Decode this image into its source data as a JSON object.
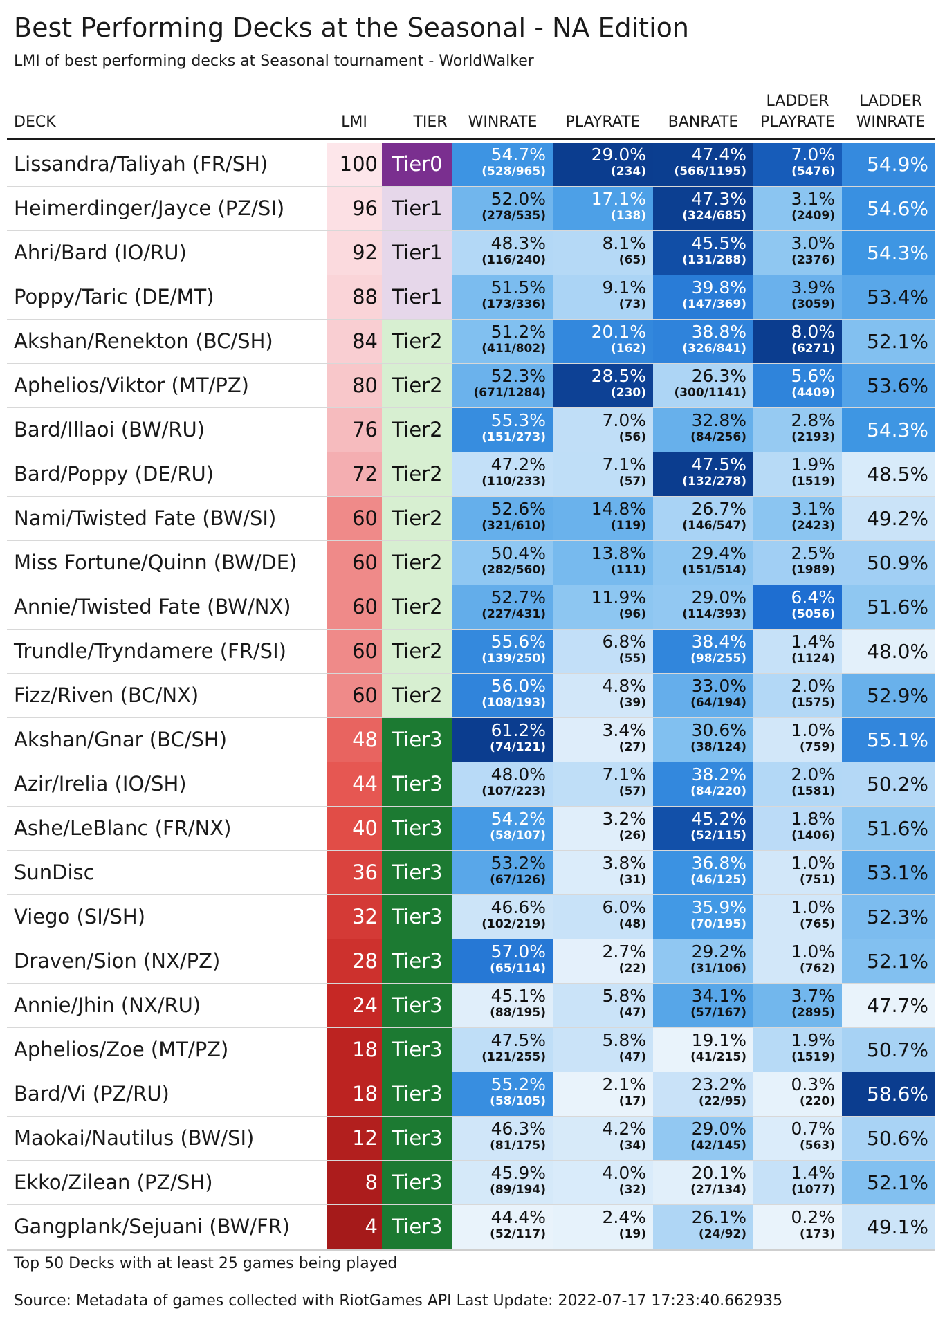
{
  "title": "Best Performing Decks at the Seasonal - NA Edition",
  "subtitle": "LMI of best performing decks at Seasonal tournament - WorldWalker",
  "headers": {
    "deck": "DECK",
    "lmi": "LMI",
    "tier": "TIER",
    "winrate": "WINRATE",
    "playrate": "PLAYRATE",
    "banrate": "BANRATE",
    "ladder_playrate_1": "LADDER",
    "ladder_playrate_2": "PLAYRATE",
    "ladder_winrate_1": "LADDER",
    "ladder_winrate_2": "WINRATE"
  },
  "footer": {
    "note": "Top 50 Decks with at least 25 games being played",
    "source": "Source: Metadata of games collected with RiotGames API Last Update: 2022-07-17 17:23:40.662935"
  },
  "tier_colors": {
    "Tier0": "#7a2f8f",
    "Tier1": "#e6d7ea",
    "Tier2": "#d7efd1",
    "Tier3": "#1c7a32"
  },
  "chart_data": {
    "type": "table",
    "columns": [
      "DECK",
      "LMI",
      "TIER",
      "WINRATE",
      "PLAYRATE",
      "BANRATE",
      "LADDER PLAYRATE",
      "LADDER WINRATE"
    ],
    "rows": [
      {
        "deck": "Lissandra/Taliyah (FR/SH)",
        "lmi": 100,
        "tier": "Tier0",
        "winrate": "54.7%",
        "winrate_count": "(528/965)",
        "playrate": "29.0%",
        "playrate_count": "(234)",
        "banrate": "47.4%",
        "banrate_count": "(566/1195)",
        "ladder_playrate": "7.0%",
        "ladder_playrate_count": "(5476)",
        "ladder_winrate": "54.9%"
      },
      {
        "deck": "Heimerdinger/Jayce (PZ/SI)",
        "lmi": 96,
        "tier": "Tier1",
        "winrate": "52.0%",
        "winrate_count": "(278/535)",
        "playrate": "17.1%",
        "playrate_count": "(138)",
        "banrate": "47.3%",
        "banrate_count": "(324/685)",
        "ladder_playrate": "3.1%",
        "ladder_playrate_count": "(2409)",
        "ladder_winrate": "54.6%"
      },
      {
        "deck": "Ahri/Bard (IO/RU)",
        "lmi": 92,
        "tier": "Tier1",
        "winrate": "48.3%",
        "winrate_count": "(116/240)",
        "playrate": "8.1%",
        "playrate_count": "(65)",
        "banrate": "45.5%",
        "banrate_count": "(131/288)",
        "ladder_playrate": "3.0%",
        "ladder_playrate_count": "(2376)",
        "ladder_winrate": "54.3%"
      },
      {
        "deck": "Poppy/Taric (DE/MT)",
        "lmi": 88,
        "tier": "Tier1",
        "winrate": "51.5%",
        "winrate_count": "(173/336)",
        "playrate": "9.1%",
        "playrate_count": "(73)",
        "banrate": "39.8%",
        "banrate_count": "(147/369)",
        "ladder_playrate": "3.9%",
        "ladder_playrate_count": "(3059)",
        "ladder_winrate": "53.4%"
      },
      {
        "deck": "Akshan/Renekton (BC/SH)",
        "lmi": 84,
        "tier": "Tier2",
        "winrate": "51.2%",
        "winrate_count": "(411/802)",
        "playrate": "20.1%",
        "playrate_count": "(162)",
        "banrate": "38.8%",
        "banrate_count": "(326/841)",
        "ladder_playrate": "8.0%",
        "ladder_playrate_count": "(6271)",
        "ladder_winrate": "52.1%"
      },
      {
        "deck": "Aphelios/Viktor (MT/PZ)",
        "lmi": 80,
        "tier": "Tier2",
        "winrate": "52.3%",
        "winrate_count": "(671/1284)",
        "playrate": "28.5%",
        "playrate_count": "(230)",
        "banrate": "26.3%",
        "banrate_count": "(300/1141)",
        "ladder_playrate": "5.6%",
        "ladder_playrate_count": "(4409)",
        "ladder_winrate": "53.6%"
      },
      {
        "deck": "Bard/Illaoi (BW/RU)",
        "lmi": 76,
        "tier": "Tier2",
        "winrate": "55.3%",
        "winrate_count": "(151/273)",
        "playrate": "7.0%",
        "playrate_count": "(56)",
        "banrate": "32.8%",
        "banrate_count": "(84/256)",
        "ladder_playrate": "2.8%",
        "ladder_playrate_count": "(2193)",
        "ladder_winrate": "54.3%"
      },
      {
        "deck": "Bard/Poppy (DE/RU)",
        "lmi": 72,
        "tier": "Tier2",
        "winrate": "47.2%",
        "winrate_count": "(110/233)",
        "playrate": "7.1%",
        "playrate_count": "(57)",
        "banrate": "47.5%",
        "banrate_count": "(132/278)",
        "ladder_playrate": "1.9%",
        "ladder_playrate_count": "(1519)",
        "ladder_winrate": "48.5%"
      },
      {
        "deck": "Nami/Twisted Fate (BW/SI)",
        "lmi": 60,
        "tier": "Tier2",
        "winrate": "52.6%",
        "winrate_count": "(321/610)",
        "playrate": "14.8%",
        "playrate_count": "(119)",
        "banrate": "26.7%",
        "banrate_count": "(146/547)",
        "ladder_playrate": "3.1%",
        "ladder_playrate_count": "(2423)",
        "ladder_winrate": "49.2%"
      },
      {
        "deck": "Miss Fortune/Quinn (BW/DE)",
        "lmi": 60,
        "tier": "Tier2",
        "winrate": "50.4%",
        "winrate_count": "(282/560)",
        "playrate": "13.8%",
        "playrate_count": "(111)",
        "banrate": "29.4%",
        "banrate_count": "(151/514)",
        "ladder_playrate": "2.5%",
        "ladder_playrate_count": "(1989)",
        "ladder_winrate": "50.9%"
      },
      {
        "deck": "Annie/Twisted Fate (BW/NX)",
        "lmi": 60,
        "tier": "Tier2",
        "winrate": "52.7%",
        "winrate_count": "(227/431)",
        "playrate": "11.9%",
        "playrate_count": "(96)",
        "banrate": "29.0%",
        "banrate_count": "(114/393)",
        "ladder_playrate": "6.4%",
        "ladder_playrate_count": "(5056)",
        "ladder_winrate": "51.6%"
      },
      {
        "deck": "Trundle/Tryndamere (FR/SI)",
        "lmi": 60,
        "tier": "Tier2",
        "winrate": "55.6%",
        "winrate_count": "(139/250)",
        "playrate": "6.8%",
        "playrate_count": "(55)",
        "banrate": "38.4%",
        "banrate_count": "(98/255)",
        "ladder_playrate": "1.4%",
        "ladder_playrate_count": "(1124)",
        "ladder_winrate": "48.0%"
      },
      {
        "deck": "Fizz/Riven (BC/NX)",
        "lmi": 60,
        "tier": "Tier2",
        "winrate": "56.0%",
        "winrate_count": "(108/193)",
        "playrate": "4.8%",
        "playrate_count": "(39)",
        "banrate": "33.0%",
        "banrate_count": "(64/194)",
        "ladder_playrate": "2.0%",
        "ladder_playrate_count": "(1575)",
        "ladder_winrate": "52.9%"
      },
      {
        "deck": "Akshan/Gnar (BC/SH)",
        "lmi": 48,
        "tier": "Tier3",
        "winrate": "61.2%",
        "winrate_count": "(74/121)",
        "playrate": "3.4%",
        "playrate_count": "(27)",
        "banrate": "30.6%",
        "banrate_count": "(38/124)",
        "ladder_playrate": "1.0%",
        "ladder_playrate_count": "(759)",
        "ladder_winrate": "55.1%"
      },
      {
        "deck": "Azir/Irelia (IO/SH)",
        "lmi": 44,
        "tier": "Tier3",
        "winrate": "48.0%",
        "winrate_count": "(107/223)",
        "playrate": "7.1%",
        "playrate_count": "(57)",
        "banrate": "38.2%",
        "banrate_count": "(84/220)",
        "ladder_playrate": "2.0%",
        "ladder_playrate_count": "(1581)",
        "ladder_winrate": "50.2%"
      },
      {
        "deck": "Ashe/LeBlanc (FR/NX)",
        "lmi": 40,
        "tier": "Tier3",
        "winrate": "54.2%",
        "winrate_count": "(58/107)",
        "playrate": "3.2%",
        "playrate_count": "(26)",
        "banrate": "45.2%",
        "banrate_count": "(52/115)",
        "ladder_playrate": "1.8%",
        "ladder_playrate_count": "(1406)",
        "ladder_winrate": "51.6%"
      },
      {
        "deck": "SunDisc",
        "lmi": 36,
        "tier": "Tier3",
        "winrate": "53.2%",
        "winrate_count": "(67/126)",
        "playrate": "3.8%",
        "playrate_count": "(31)",
        "banrate": "36.8%",
        "banrate_count": "(46/125)",
        "ladder_playrate": "1.0%",
        "ladder_playrate_count": "(751)",
        "ladder_winrate": "53.1%"
      },
      {
        "deck": "Viego (SI/SH)",
        "lmi": 32,
        "tier": "Tier3",
        "winrate": "46.6%",
        "winrate_count": "(102/219)",
        "playrate": "6.0%",
        "playrate_count": "(48)",
        "banrate": "35.9%",
        "banrate_count": "(70/195)",
        "ladder_playrate": "1.0%",
        "ladder_playrate_count": "(765)",
        "ladder_winrate": "52.3%"
      },
      {
        "deck": "Draven/Sion (NX/PZ)",
        "lmi": 28,
        "tier": "Tier3",
        "winrate": "57.0%",
        "winrate_count": "(65/114)",
        "playrate": "2.7%",
        "playrate_count": "(22)",
        "banrate": "29.2%",
        "banrate_count": "(31/106)",
        "ladder_playrate": "1.0%",
        "ladder_playrate_count": "(762)",
        "ladder_winrate": "52.1%"
      },
      {
        "deck": "Annie/Jhin (NX/RU)",
        "lmi": 24,
        "tier": "Tier3",
        "winrate": "45.1%",
        "winrate_count": "(88/195)",
        "playrate": "5.8%",
        "playrate_count": "(47)",
        "banrate": "34.1%",
        "banrate_count": "(57/167)",
        "ladder_playrate": "3.7%",
        "ladder_playrate_count": "(2895)",
        "ladder_winrate": "47.7%"
      },
      {
        "deck": "Aphelios/Zoe (MT/PZ)",
        "lmi": 18,
        "tier": "Tier3",
        "winrate": "47.5%",
        "winrate_count": "(121/255)",
        "playrate": "5.8%",
        "playrate_count": "(47)",
        "banrate": "19.1%",
        "banrate_count": "(41/215)",
        "ladder_playrate": "1.9%",
        "ladder_playrate_count": "(1519)",
        "ladder_winrate": "50.7%"
      },
      {
        "deck": "Bard/Vi (PZ/RU)",
        "lmi": 18,
        "tier": "Tier3",
        "winrate": "55.2%",
        "winrate_count": "(58/105)",
        "playrate": "2.1%",
        "playrate_count": "(17)",
        "banrate": "23.2%",
        "banrate_count": "(22/95)",
        "ladder_playrate": "0.3%",
        "ladder_playrate_count": "(220)",
        "ladder_winrate": "58.6%"
      },
      {
        "deck": "Maokai/Nautilus (BW/SI)",
        "lmi": 12,
        "tier": "Tier3",
        "winrate": "46.3%",
        "winrate_count": "(81/175)",
        "playrate": "4.2%",
        "playrate_count": "(34)",
        "banrate": "29.0%",
        "banrate_count": "(42/145)",
        "ladder_playrate": "0.7%",
        "ladder_playrate_count": "(563)",
        "ladder_winrate": "50.6%"
      },
      {
        "deck": "Ekko/Zilean (PZ/SH)",
        "lmi": 8,
        "tier": "Tier3",
        "winrate": "45.9%",
        "winrate_count": "(89/194)",
        "playrate": "4.0%",
        "playrate_count": "(32)",
        "banrate": "20.1%",
        "banrate_count": "(27/134)",
        "ladder_playrate": "1.4%",
        "ladder_playrate_count": "(1077)",
        "ladder_winrate": "52.1%"
      },
      {
        "deck": "Gangplank/Sejuani (BW/FR)",
        "lmi": 4,
        "tier": "Tier3",
        "winrate": "44.4%",
        "winrate_count": "(52/117)",
        "playrate": "2.4%",
        "playrate_count": "(19)",
        "banrate": "26.1%",
        "banrate_count": "(24/92)",
        "ladder_playrate": "0.2%",
        "ladder_playrate_count": "(173)",
        "ladder_winrate": "49.1%"
      }
    ]
  }
}
